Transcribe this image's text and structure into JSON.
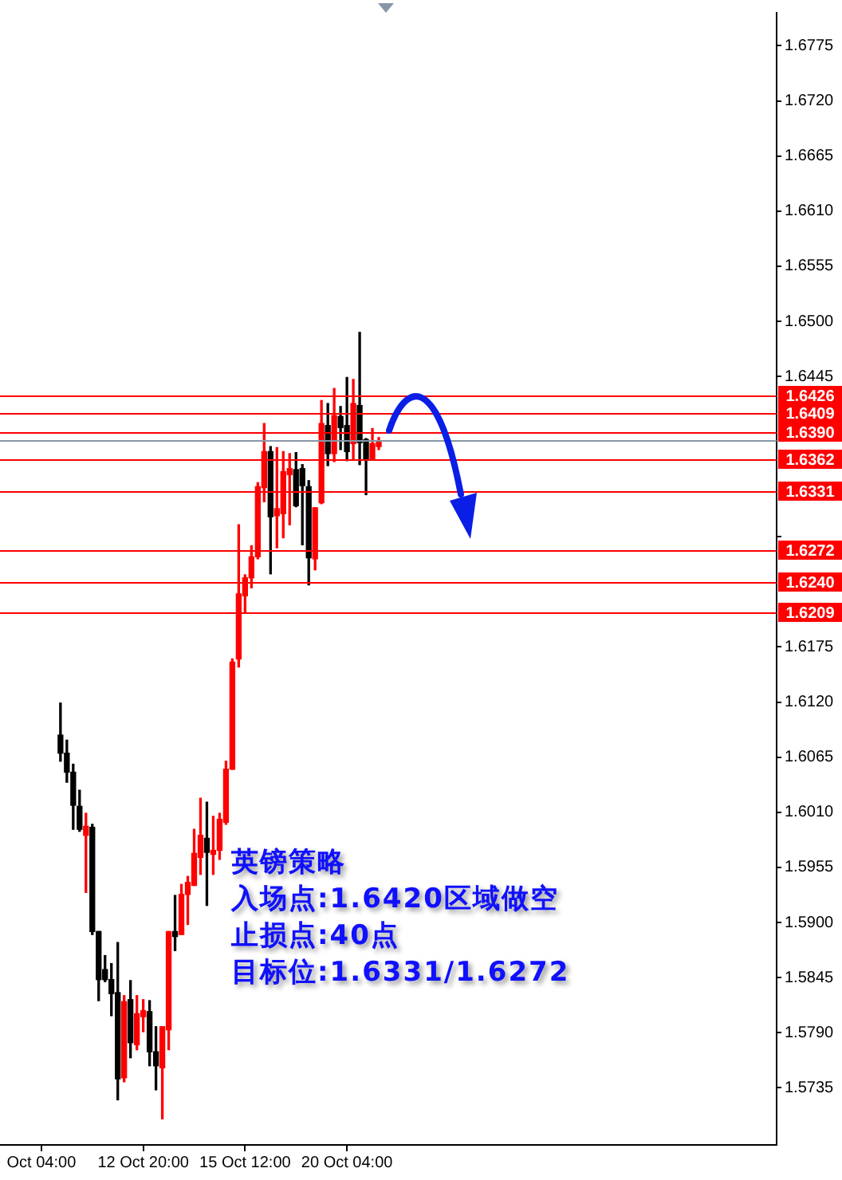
{
  "chart_data": {
    "type": "candlestick",
    "categories": [
      null,
      null,
      null,
      null,
      null,
      null,
      "Oct 04:00",
      null,
      null,
      null,
      null,
      null,
      null,
      null,
      null,
      null,
      null,
      null,
      null,
      null,
      null,
      null,
      "12 Oct 20:00",
      null,
      null,
      null,
      null,
      null,
      null,
      null,
      null,
      null,
      null,
      null,
      null,
      null,
      null,
      null,
      "15 Oct 12:00",
      null,
      null,
      null,
      null,
      null,
      null,
      null,
      null,
      null,
      null,
      null,
      null,
      null,
      null,
      null,
      "20 Oct 04:00",
      null,
      null,
      null,
      null,
      null,
      null,
      null,
      null,
      null,
      null,
      null,
      null,
      null,
      null,
      null,
      null,
      null,
      null,
      null,
      null,
      null,
      null,
      null,
      null,
      null,
      null,
      null,
      null,
      null,
      null,
      null,
      null,
      null,
      null,
      null,
      null,
      null,
      null,
      null,
      null,
      null,
      null,
      null,
      null,
      null,
      null,
      null,
      null,
      null,
      null,
      null,
      null,
      null,
      null,
      null,
      null,
      null,
      null,
      null,
      null,
      null,
      null,
      null,
      null,
      null,
      null,
      null
    ],
    "ohlc": [
      null,
      null,
      null,
      null,
      null,
      null,
      null,
      null,
      null,
      [
        1.6087,
        1.6119,
        1.6061,
        1.6069
      ],
      [
        1.6069,
        1.6082,
        1.604,
        1.605
      ],
      [
        1.605,
        1.6058,
        1.5993,
        1.6017
      ],
      [
        1.6016,
        1.6032,
        1.5991,
        1.5993
      ],
      [
        1.5987,
        1.6009,
        1.593,
        1.5996
      ],
      [
        1.5995,
        1.5998,
        1.5888,
        1.5891
      ],
      [
        1.5891,
        1.5891,
        1.5822,
        1.5843
      ],
      [
        1.5853,
        1.5867,
        1.5841,
        1.5843
      ],
      [
        1.5843,
        1.5859,
        1.5807,
        1.5829
      ],
      [
        1.583,
        1.588,
        1.5723,
        1.5744
      ],
      [
        1.5745,
        1.5827,
        1.5741,
        1.5821
      ],
      [
        1.5823,
        1.5842,
        1.5765,
        1.578
      ],
      [
        1.5778,
        1.5827,
        1.5773,
        1.5809
      ],
      [
        1.5806,
        1.5823,
        1.5791,
        1.5812
      ],
      [
        1.5811,
        1.5822,
        1.5757,
        1.5771
      ],
      [
        1.5771,
        1.5796,
        1.5733,
        1.5757
      ],
      [
        1.5755,
        1.5796,
        1.5704,
        1.5796
      ],
      [
        1.5793,
        1.5891,
        1.5773,
        1.5891
      ],
      [
        1.5891,
        1.5927,
        1.5872,
        1.5886
      ],
      [
        1.5888,
        1.5938,
        1.5888,
        1.5928
      ],
      [
        1.5928,
        1.5946,
        1.5898,
        1.594
      ],
      [
        1.5937,
        1.5993,
        1.5937,
        1.5969
      ],
      [
        1.5965,
        1.6024,
        1.5948,
        1.5987
      ],
      [
        1.5984,
        1.602,
        1.5917,
        1.597
      ],
      [
        1.5968,
        1.6006,
        1.5948,
        1.5972
      ],
      [
        1.5972,
        1.6009,
        1.5963,
        1.6003
      ],
      [
        1.6,
        1.6061,
        1.5998,
        1.6053
      ],
      [
        1.6053,
        1.6163,
        1.6053,
        1.616
      ],
      [
        1.6163,
        1.6297,
        1.6155,
        1.6228
      ],
      [
        1.6226,
        1.6247,
        1.621,
        1.6244
      ],
      [
        1.6244,
        1.6276,
        1.6234,
        1.6265
      ],
      [
        1.6265,
        1.6339,
        1.6263,
        1.6335
      ],
      [
        1.6334,
        1.6398,
        1.632,
        1.637
      ],
      [
        1.637,
        1.6375,
        1.6248,
        1.6305
      ],
      [
        1.6306,
        1.6374,
        1.6274,
        1.6313
      ],
      [
        1.6308,
        1.637,
        1.6284,
        1.635
      ],
      [
        1.6347,
        1.6368,
        1.6297,
        1.6353
      ],
      [
        1.6352,
        1.6369,
        1.6315,
        1.6316
      ],
      [
        1.6353,
        1.6357,
        1.6277,
        1.6336
      ],
      [
        1.6335,
        1.6341,
        1.6237,
        1.6264
      ],
      [
        1.6263,
        1.6314,
        1.6252,
        1.6314
      ],
      [
        1.6319,
        1.6421,
        1.6318,
        1.6398
      ],
      [
        1.6396,
        1.6418,
        1.6356,
        1.6368
      ],
      [
        1.6368,
        1.6433,
        1.636,
        1.6406
      ],
      [
        1.6405,
        1.6415,
        1.6372,
        1.6394
      ],
      [
        1.6396,
        1.6444,
        1.6361,
        1.637
      ],
      [
        1.6378,
        1.6442,
        1.6362,
        1.6418
      ],
      [
        1.6416,
        1.6489,
        1.6357,
        1.6379
      ],
      [
        1.6382,
        1.6383,
        1.6327,
        1.6362
      ],
      [
        1.6363,
        1.6393,
        1.6362,
        1.6378
      ],
      [
        1.6375,
        1.6384,
        1.6372,
        1.638
      ],
      null,
      null,
      null,
      null,
      null,
      null,
      null,
      null,
      null,
      null,
      null,
      null,
      null,
      null,
      null,
      null,
      null,
      null,
      null,
      null,
      null,
      null,
      null,
      null,
      null,
      null,
      null,
      null,
      null,
      null,
      null,
      null,
      null,
      null,
      null,
      null,
      null,
      null,
      null,
      null,
      null,
      null,
      null,
      null,
      null,
      null,
      null,
      null,
      null,
      null,
      null,
      null,
      null,
      null,
      null,
      null,
      null,
      null,
      null,
      null,
      null,
      null
    ],
    "colors": [
      null,
      null,
      null,
      null,
      null,
      null,
      null,
      null,
      null,
      "#000000",
      "#000000",
      "#000000",
      "#000000",
      "#ff0000",
      "#000000",
      "#000000",
      "#000000",
      "#000000",
      "#000000",
      "#ff0000",
      "#000000",
      "#ff0000",
      "#ff0000",
      "#000000",
      "#000000",
      "#ff0000",
      "#ff0000",
      "#000000",
      "#ff0000",
      "#ff0000",
      "#ff0000",
      "#ff0000",
      "#000000",
      "#ff0000",
      "#ff0000",
      "#ff0000",
      "#ff0000",
      "#ff0000",
      "#ff0000",
      "#ff0000",
      "#ff0000",
      "#ff0000",
      "#000000",
      "#ff0000",
      "#ff0000",
      "#ff0000",
      "#000000",
      "#000000",
      "#000000",
      "#ff0000",
      "#ff0000",
      "#000000",
      "#ff0000",
      "#000000",
      "#000000",
      "#ff0000",
      "#000000",
      "#000000",
      "#ff0000",
      "#ff0000",
      null,
      null,
      null,
      null,
      null,
      null,
      null,
      null,
      null,
      null,
      null,
      null,
      null,
      null,
      null,
      null,
      null,
      null,
      null,
      null,
      null,
      null,
      null,
      null,
      null,
      null,
      null,
      null,
      null,
      null,
      null,
      null,
      null,
      null,
      null,
      null,
      null,
      null,
      null,
      null,
      null,
      null,
      null,
      null,
      null,
      null,
      null,
      null,
      null,
      null,
      null,
      null,
      null,
      null,
      null,
      null,
      null,
      null,
      null,
      null,
      null,
      null
    ],
    "ylim": [
      1.5678,
      1.6808
    ],
    "yticks": [
      {
        "value": 1.6775,
        "label": "1.6775"
      },
      {
        "value": 1.672,
        "label": "1.6720"
      },
      {
        "value": 1.6665,
        "label": "1.6665"
      },
      {
        "value": 1.661,
        "label": "1.6610"
      },
      {
        "value": 1.6555,
        "label": "1.6555"
      },
      {
        "value": 1.65,
        "label": "1.6500"
      },
      {
        "value": 1.6445,
        "label": "1.6445"
      },
      {
        "value": 1.6285,
        "label": null
      },
      {
        "value": 1.6175,
        "label": "1.6175"
      },
      {
        "value": 1.612,
        "label": "1.6120"
      },
      {
        "value": 1.6065,
        "label": "1.6065"
      },
      {
        "value": 1.601,
        "label": "1.6010"
      },
      {
        "value": 1.5955,
        "label": "1.5955"
      },
      {
        "value": 1.59,
        "label": "1.5900"
      },
      {
        "value": 1.5845,
        "label": "1.5845"
      },
      {
        "value": 1.579,
        "label": "1.5790"
      },
      {
        "value": 1.5735,
        "label": "1.5735"
      }
    ],
    "grid": false,
    "legend": false,
    "ref_lines": [
      {
        "axis": "y",
        "value": 1.6382,
        "label": null,
        "color": "#8896a8"
      },
      {
        "axis": "y",
        "value": 1.6426,
        "label": "1.6426",
        "color": "#ff0000"
      },
      {
        "axis": "y",
        "value": 1.6409,
        "label": "1.6409",
        "color": "#ff0000"
      },
      {
        "axis": "y",
        "value": 1.639,
        "label": "1.6390",
        "color": "#ff0000"
      },
      {
        "axis": "y",
        "value": 1.6362,
        "label": "1.6362",
        "color": "#ff0000"
      },
      {
        "axis": "y",
        "value": 1.6331,
        "label": "1.6331",
        "color": "#ff0000"
      },
      {
        "axis": "y",
        "value": 1.6272,
        "label": "1.6272",
        "color": "#ff0000"
      },
      {
        "axis": "y",
        "value": 1.624,
        "label": "1.6240",
        "color": "#ff0000"
      },
      {
        "axis": "y",
        "value": 1.6209,
        "label": "1.6209",
        "color": "#ff0000"
      }
    ],
    "annotations": [
      "英镑策略",
      "入场点:1.6420区域做空",
      "止损点:40点",
      "目标位:1.6331/1.6272"
    ]
  }
}
